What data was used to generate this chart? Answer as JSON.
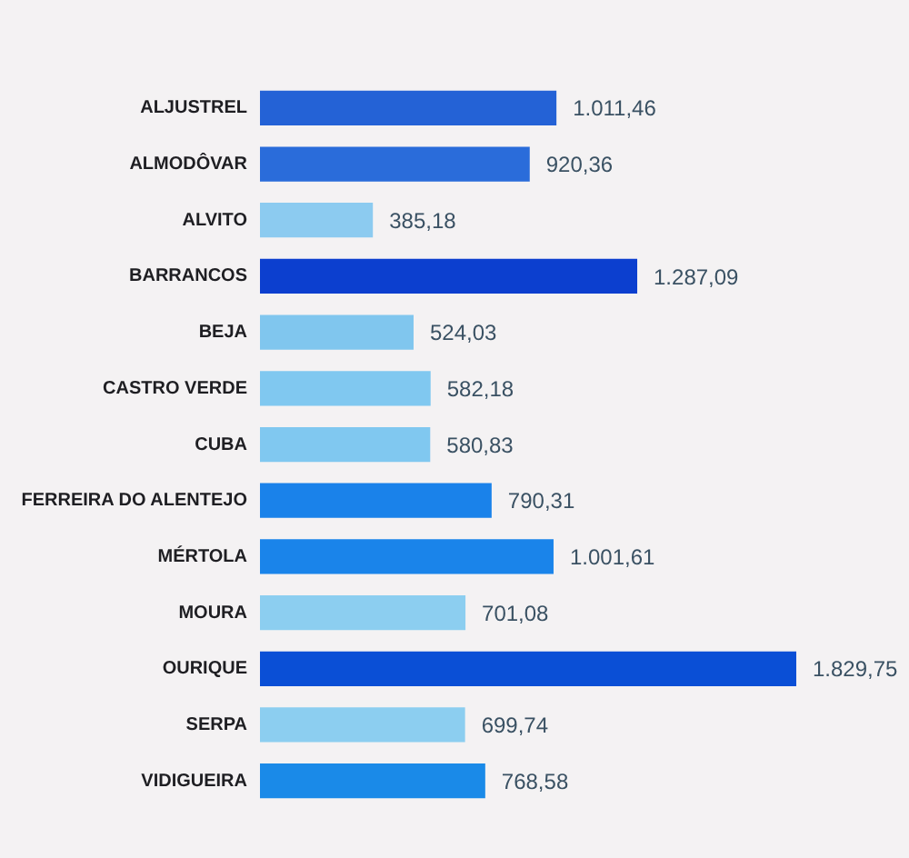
{
  "chart_data": {
    "type": "bar",
    "orientation": "horizontal",
    "categories": [
      "ALJUSTREL",
      "ALMODÔVAR",
      "ALVITO",
      "BARRANCOS",
      "BEJA",
      "CASTRO VERDE",
      "CUBA",
      "FERREIRA DO ALENTEJO",
      "MÉRTOLA",
      "MOURA",
      "OURIQUE",
      "SERPA",
      "VIDIGUEIRA"
    ],
    "values": [
      1011.46,
      920.36,
      385.18,
      1287.09,
      524.03,
      582.18,
      580.83,
      790.31,
      1001.61,
      701.08,
      1829.75,
      699.74,
      768.58
    ],
    "colors": [
      "#2462d6",
      "#2a6cda",
      "#8ccbf0",
      "#0c3fcf",
      "#80c6ee",
      "#80c8f0",
      "#80c8f0",
      "#1a82ea",
      "#1a84ea",
      "#8ccef0",
      "#0a4fd6",
      "#8ccef0",
      "#1a8ae8"
    ],
    "value_labels": [
      "1.011,46",
      "920,36",
      "385,18",
      "1.287,09",
      "524,03",
      "582,18",
      "580,83",
      "790,31",
      "1.001,61",
      "701,08",
      "1.829,75",
      "699,74",
      "768,58"
    ],
    "tick_labels": "y"
  }
}
